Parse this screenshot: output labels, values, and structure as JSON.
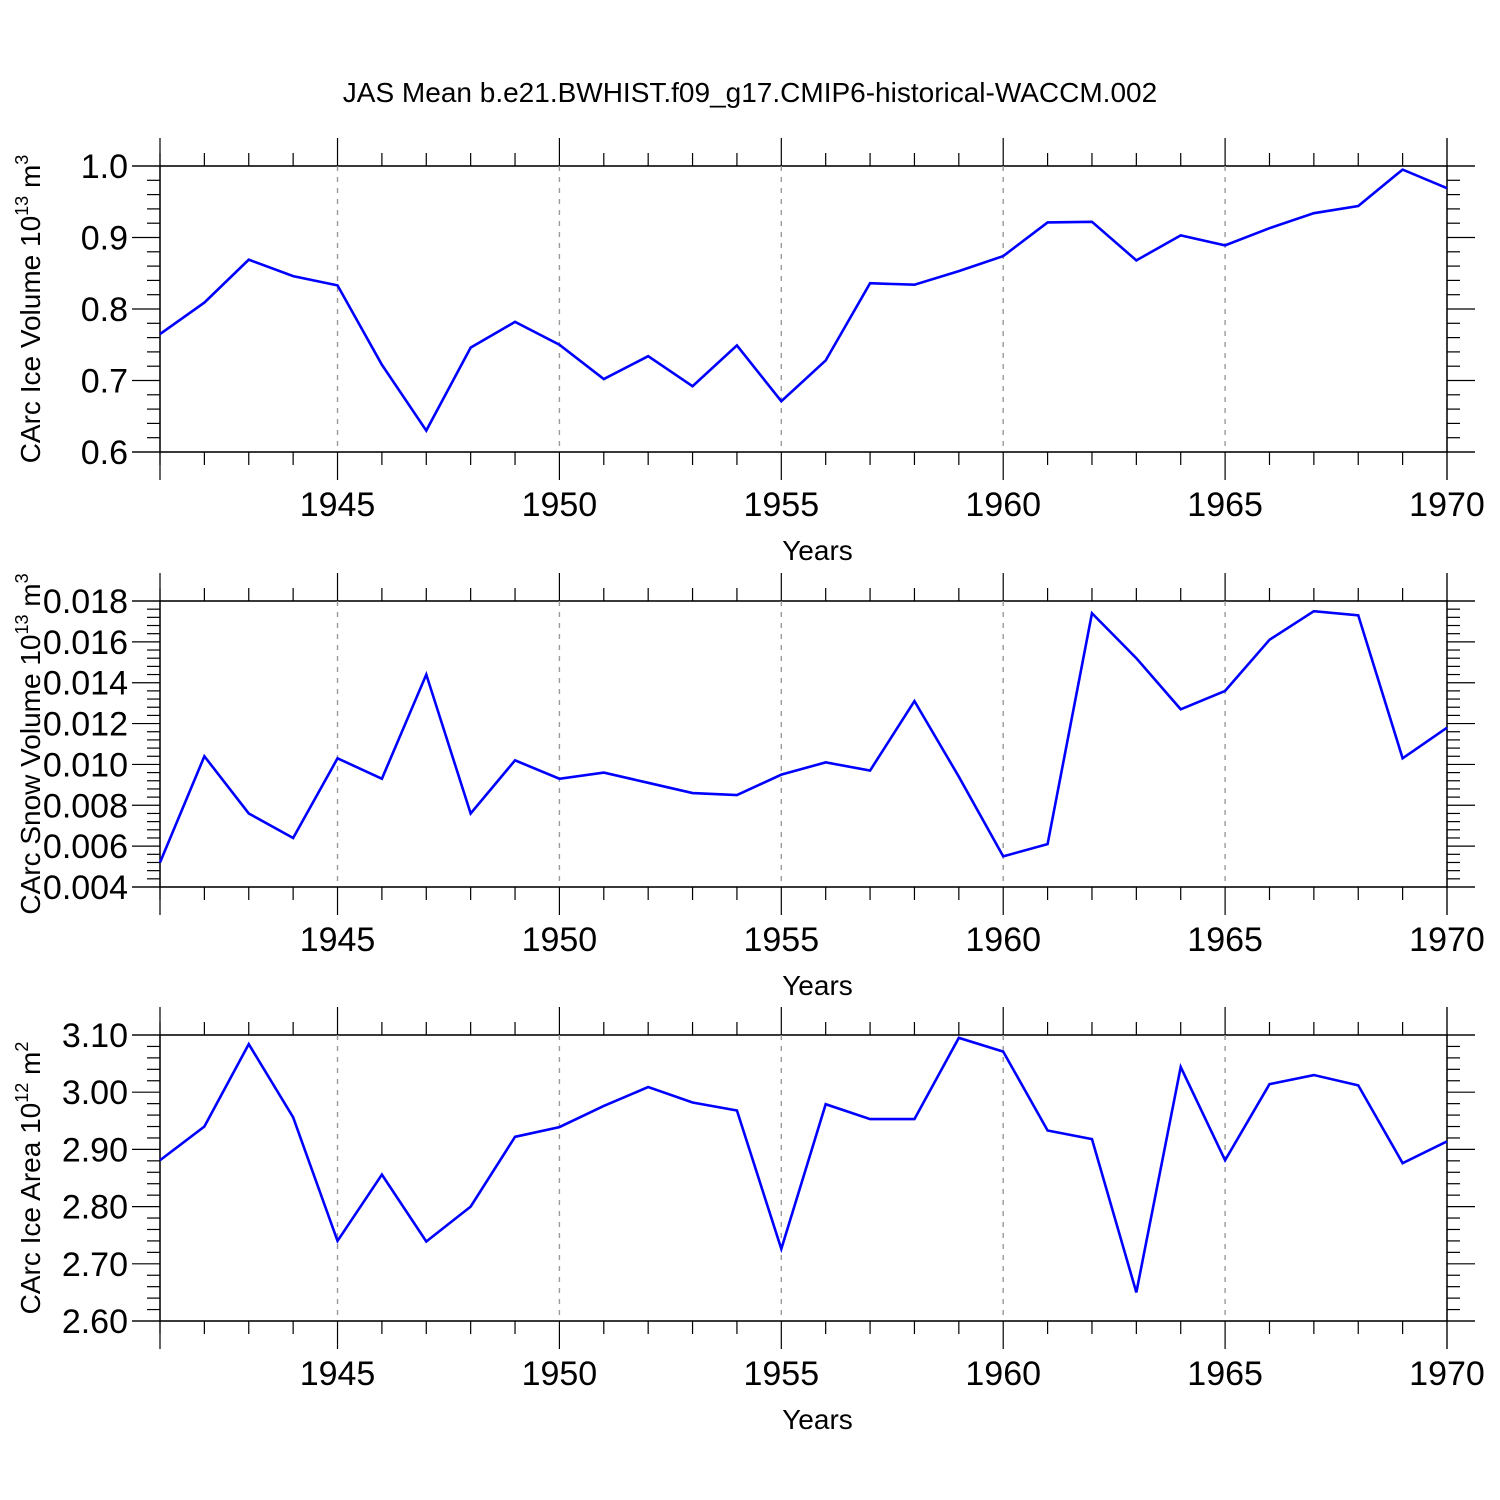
{
  "chart_data": {
    "title": "JAS Mean b.e21.BWHIST.f09_g17.CMIP6-historical-WACCM.002",
    "panels": [
      {
        "type": "line",
        "xlabel": "Years",
        "ylabel": "CArc Ice Volume 10",
        "ylabel_sup": "13",
        "ylabel_unit": " m",
        "ylabel_unit_sup": "3",
        "xlim": [
          1941,
          1970
        ],
        "ylim": [
          0.6,
          1.0
        ],
        "xticks": [
          1945,
          1950,
          1955,
          1960,
          1965,
          1970
        ],
        "yticks": [
          "0.6",
          "0.7",
          "0.8",
          "0.9",
          "1.0"
        ],
        "x": [
          1941,
          1942,
          1943,
          1944,
          1945,
          1946,
          1947,
          1948,
          1949,
          1950,
          1951,
          1952,
          1953,
          1954,
          1955,
          1956,
          1957,
          1958,
          1959,
          1960,
          1961,
          1962,
          1963,
          1964,
          1965,
          1966,
          1967,
          1968,
          1969,
          1970
        ],
        "series": [
          {
            "name": "CArc Ice Volume",
            "color": "#0000ff",
            "values": [
              0.765,
              0.809,
              0.869,
              0.846,
              0.833,
              0.722,
              0.63,
              0.746,
              0.782,
              0.75,
              0.702,
              0.734,
              0.692,
              0.749,
              0.671,
              0.728,
              0.836,
              0.834,
              0.853,
              0.874,
              0.921,
              0.922,
              0.868,
              0.903,
              0.889,
              0.913,
              0.934,
              0.944,
              0.995,
              0.969
            ]
          }
        ]
      },
      {
        "type": "line",
        "xlabel": "Years",
        "ylabel": "CArc Snow Volume 10",
        "ylabel_sup": "13",
        "ylabel_unit": " m",
        "ylabel_unit_sup": "3",
        "xlim": [
          1941,
          1970
        ],
        "ylim": [
          0.004,
          0.018
        ],
        "xticks": [
          1945,
          1950,
          1955,
          1960,
          1965,
          1970
        ],
        "yticks": [
          "0.004",
          "0.006",
          "0.008",
          "0.010",
          "0.012",
          "0.014",
          "0.016",
          "0.018"
        ],
        "x": [
          1941,
          1942,
          1943,
          1944,
          1945,
          1946,
          1947,
          1948,
          1949,
          1950,
          1951,
          1952,
          1953,
          1954,
          1955,
          1956,
          1957,
          1958,
          1959,
          1960,
          1961,
          1962,
          1963,
          1964,
          1965,
          1966,
          1967,
          1968,
          1969,
          1970
        ],
        "series": [
          {
            "name": "CArc Snow Volume",
            "color": "#0000ff",
            "values": [
              0.0052,
              0.0104,
              0.0076,
              0.0064,
              0.0103,
              0.0093,
              0.0144,
              0.0076,
              0.0102,
              0.0093,
              0.0096,
              0.0091,
              0.0086,
              0.0085,
              0.0095,
              0.0101,
              0.0097,
              0.0131,
              0.0094,
              0.0055,
              0.0061,
              0.0174,
              0.0152,
              0.0127,
              0.0136,
              0.0161,
              0.0175,
              0.0173,
              0.0103,
              0.0118
            ]
          }
        ]
      },
      {
        "type": "line",
        "xlabel": "Years",
        "ylabel": "CArc Ice Area 10",
        "ylabel_sup": "12",
        "ylabel_unit": " m",
        "ylabel_unit_sup": "2",
        "xlim": [
          1941,
          1970
        ],
        "ylim": [
          2.6,
          3.1
        ],
        "xticks": [
          1945,
          1950,
          1955,
          1960,
          1965,
          1970
        ],
        "yticks": [
          "2.60",
          "2.70",
          "2.80",
          "2.90",
          "3.00",
          "3.10"
        ],
        "x": [
          1941,
          1942,
          1943,
          1944,
          1945,
          1946,
          1947,
          1948,
          1949,
          1950,
          1951,
          1952,
          1953,
          1954,
          1955,
          1956,
          1957,
          1958,
          1959,
          1960,
          1961,
          1962,
          1963,
          1964,
          1965,
          1966,
          1967,
          1968,
          1969,
          1970
        ],
        "series": [
          {
            "name": "CArc Ice Area",
            "color": "#0000ff",
            "values": [
              2.881,
              2.94,
              3.084,
              2.956,
              2.74,
              2.856,
              2.739,
              2.8,
              2.922,
              2.939,
              2.976,
              3.009,
              2.982,
              2.968,
              2.726,
              2.979,
              2.953,
              2.953,
              3.095,
              3.071,
              2.933,
              2.918,
              2.65,
              3.044,
              2.881,
              3.014,
              3.03,
              3.012,
              2.876,
              2.914
            ]
          }
        ]
      }
    ]
  }
}
